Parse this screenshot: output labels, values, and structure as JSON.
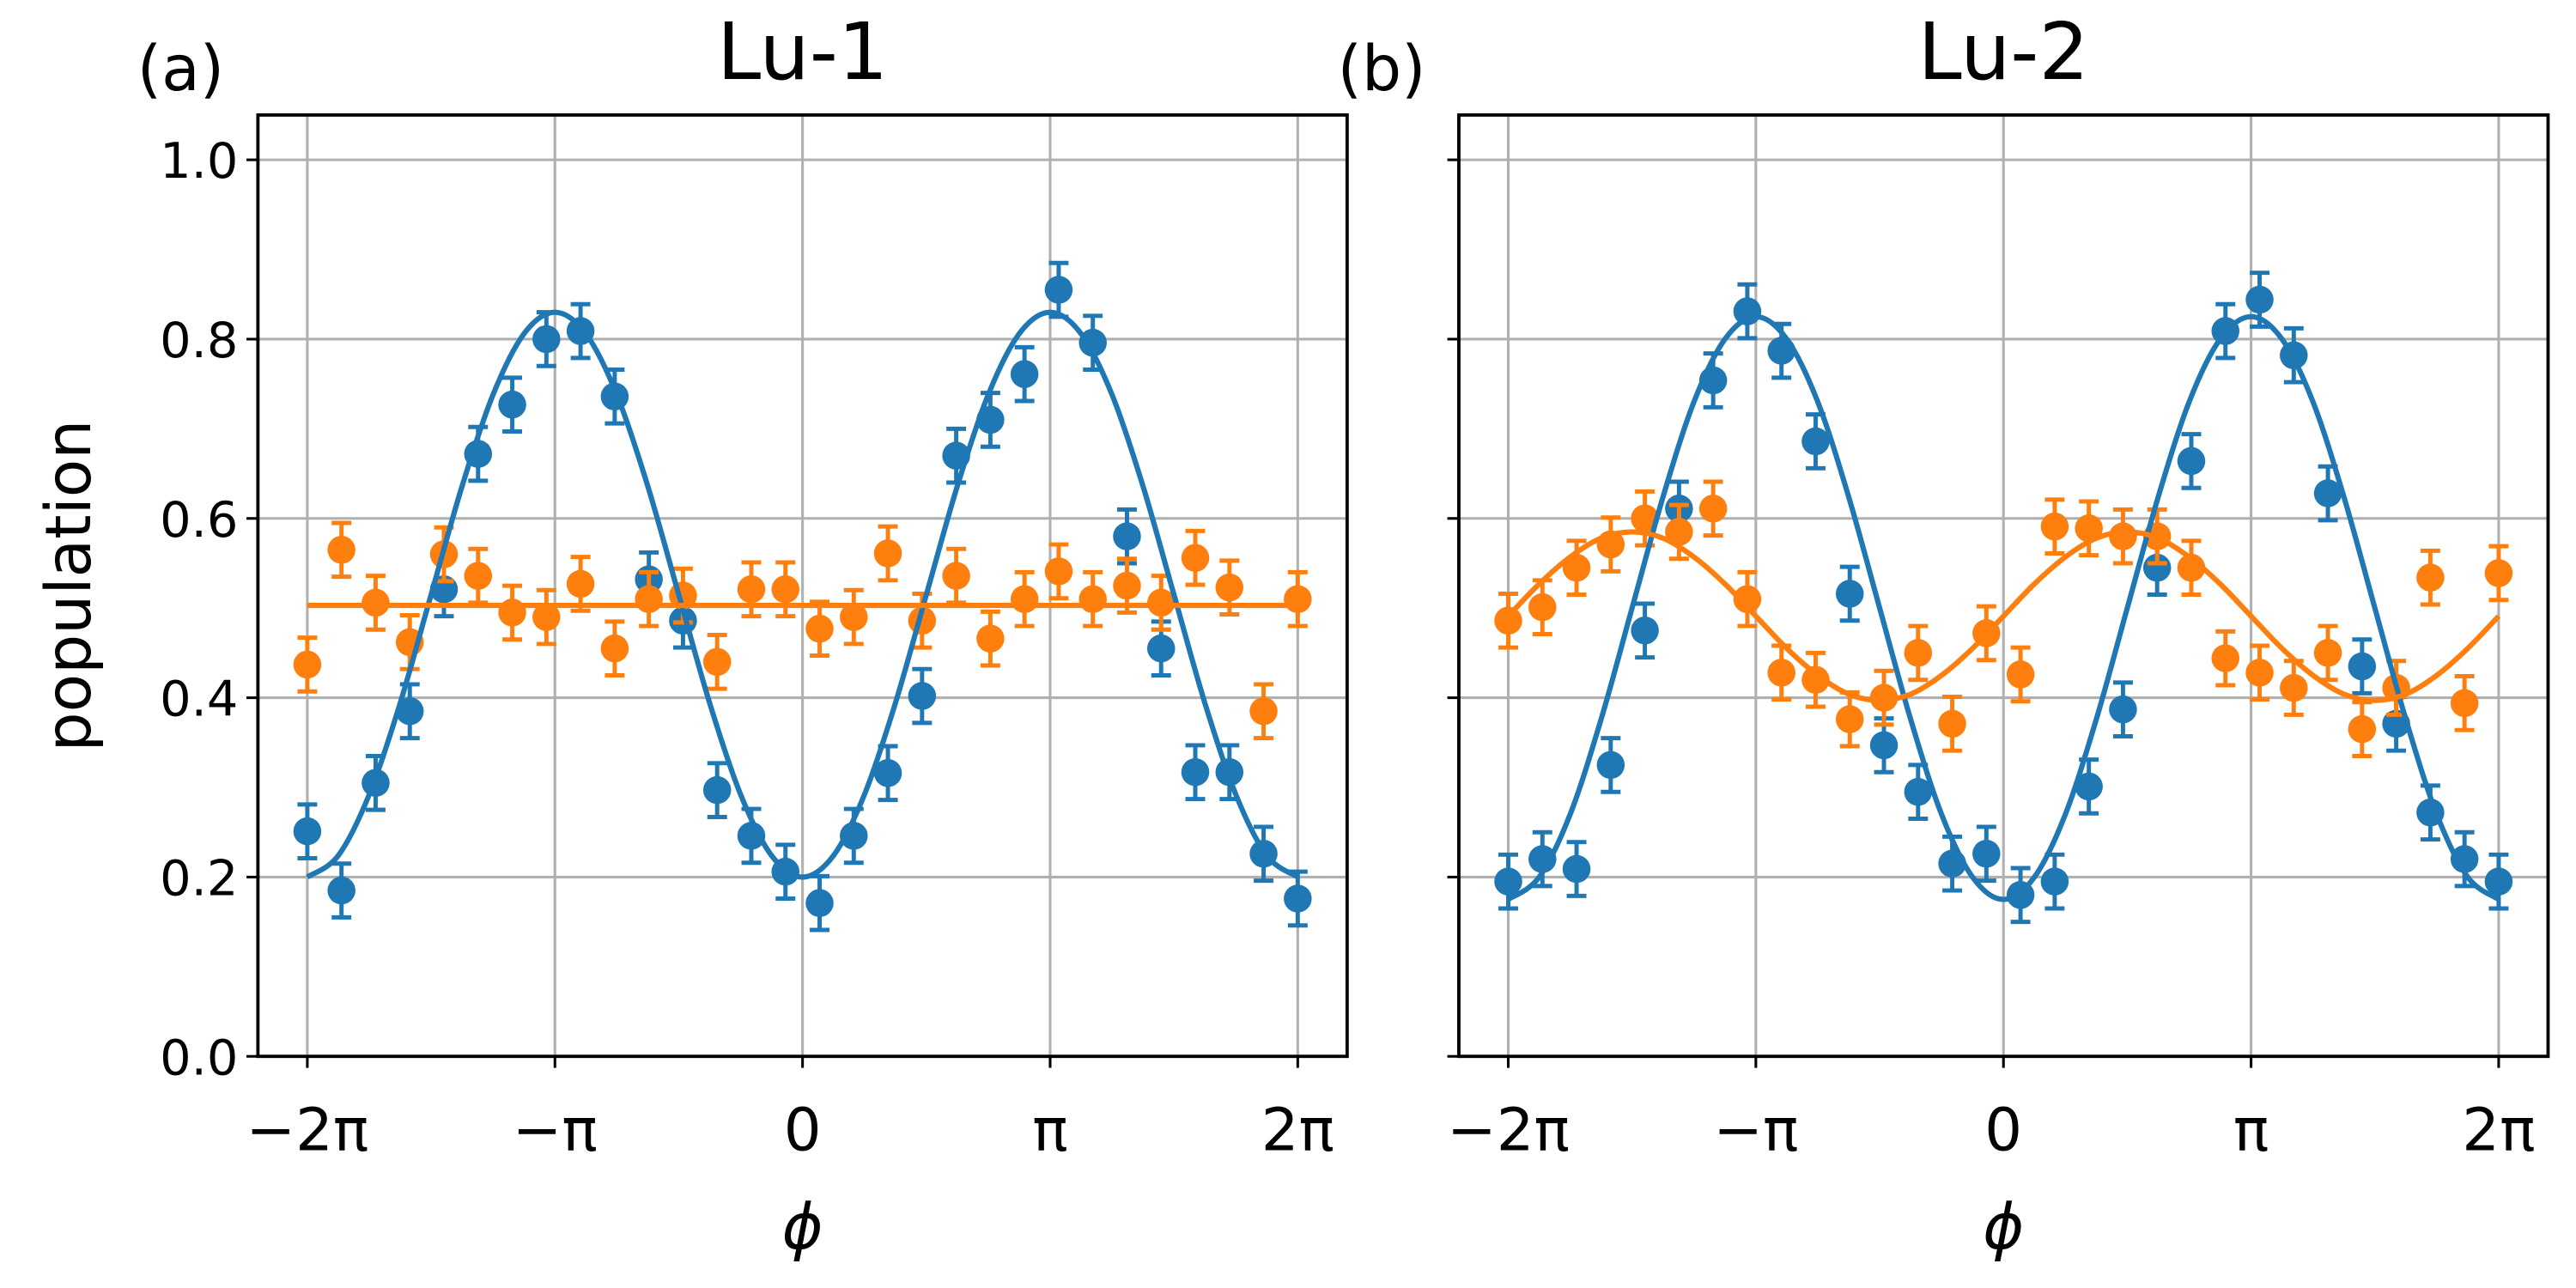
{
  "chart_data": [
    {
      "type": "scatter",
      "panel_label": "(a)",
      "title": "Lu-1",
      "xlabel": "ϕ",
      "ylabel": "population",
      "xlim": [
        -6.91,
        6.91
      ],
      "ylim": [
        0,
        1.05
      ],
      "xticks": [
        {
          "value": -6.2832,
          "label": "−2π"
        },
        {
          "value": -3.1416,
          "label": "−π"
        },
        0,
        {
          "value": 3.1416,
          "label": "π"
        },
        {
          "value": 6.2832,
          "label": "2π"
        }
      ],
      "yticks": [
        {
          "value": 0,
          "label": "0.0"
        },
        0.2,
        0.4,
        0.6,
        0.8,
        {
          "value": 1,
          "label": "1.0"
        }
      ],
      "grid": true,
      "x": [
        -6.2832,
        -5.8499,
        -5.4166,
        -4.9832,
        -4.5499,
        -4.1166,
        -3.6833,
        -3.2499,
        -2.8166,
        -2.3833,
        -1.95,
        -1.5166,
        -1.0833,
        -0.65,
        -0.2167,
        0.2167,
        0.65,
        1.0833,
        1.5166,
        1.95,
        2.3833,
        2.8166,
        3.2499,
        3.6833,
        4.1166,
        4.5499,
        4.9832,
        5.4166,
        5.8499,
        6.2832
      ],
      "series": [
        {
          "type": "errorbar",
          "color": "#1f77b4",
          "values": [
            0.251,
            0.185,
            0.305,
            0.385,
            0.521,
            0.672,
            0.727,
            0.8,
            0.809,
            0.736,
            0.532,
            0.486,
            0.297,
            0.246,
            0.206,
            0.171,
            0.246,
            0.316,
            0.402,
            0.67,
            0.71,
            0.761,
            0.855,
            0.796,
            0.58,
            0.455,
            0.317,
            0.317,
            0.226,
            0.176
          ],
          "errors": [
            0.03,
            0.03,
            0.03,
            0.03,
            0.03,
            0.03,
            0.03,
            0.03,
            0.03,
            0.03,
            0.03,
            0.03,
            0.03,
            0.03,
            0.03,
            0.03,
            0.03,
            0.03,
            0.03,
            0.03,
            0.03,
            0.03,
            0.03,
            0.03,
            0.03,
            0.03,
            0.03,
            0.03,
            0.03,
            0.03
          ]
        },
        {
          "type": "errorbar",
          "color": "#ff7f0e",
          "values": [
            0.437,
            0.565,
            0.506,
            0.462,
            0.56,
            0.536,
            0.495,
            0.49,
            0.527,
            0.455,
            0.51,
            0.514,
            0.44,
            0.521,
            0.521,
            0.477,
            0.49,
            0.561,
            0.486,
            0.536,
            0.466,
            0.51,
            0.541,
            0.51,
            0.525,
            0.506,
            0.556,
            0.523,
            0.385,
            0.51
          ],
          "errors": [
            0.03,
            0.03,
            0.03,
            0.03,
            0.03,
            0.03,
            0.03,
            0.03,
            0.03,
            0.03,
            0.03,
            0.03,
            0.03,
            0.03,
            0.03,
            0.03,
            0.03,
            0.03,
            0.03,
            0.03,
            0.03,
            0.03,
            0.03,
            0.03,
            0.03,
            0.03,
            0.03,
            0.03,
            0.03,
            0.03
          ]
        },
        {
          "type": "line",
          "color": "#1f77b4",
          "x": [
            -6.2832,
            -5.8905,
            -5.4978,
            -5.1051,
            -4.7124,
            -4.3197,
            -3.927,
            -3.5343,
            -3.1416,
            -2.7489,
            -2.3562,
            -1.9635,
            -1.5708,
            -1.1781,
            -0.7854,
            -0.3927,
            0,
            0.3927,
            0.7854,
            1.1781,
            1.5708,
            1.9635,
            2.3562,
            2.7489,
            3.1416,
            3.5343,
            3.927,
            4.3197,
            4.7124,
            5.1051,
            5.4978,
            5.8905,
            6.2832
          ],
          "values": [
            0.2,
            0.224,
            0.292,
            0.394,
            0.515,
            0.636,
            0.738,
            0.806,
            0.83,
            0.806,
            0.738,
            0.636,
            0.515,
            0.394,
            0.292,
            0.224,
            0.2,
            0.224,
            0.292,
            0.394,
            0.515,
            0.636,
            0.738,
            0.806,
            0.83,
            0.806,
            0.738,
            0.636,
            0.515,
            0.394,
            0.292,
            0.224,
            0.2
          ]
        },
        {
          "type": "line",
          "color": "#ff7f0e",
          "x": [
            -6.2832,
            6.2832
          ],
          "values": [
            0.503,
            0.503
          ]
        }
      ]
    },
    {
      "type": "scatter",
      "panel_label": "(b)",
      "title": "Lu-2",
      "xlabel": "ϕ",
      "sharey": true,
      "xlim": [
        -6.91,
        6.91
      ],
      "ylim": [
        0,
        1.05
      ],
      "xticks": [
        {
          "value": -6.2832,
          "label": "−2π"
        },
        {
          "value": -3.1416,
          "label": "−π"
        },
        0,
        {
          "value": 3.1416,
          "label": "π"
        },
        {
          "value": 6.2832,
          "label": "2π"
        }
      ],
      "yticks": [
        0,
        0.2,
        0.4,
        0.6,
        0.8,
        1
      ],
      "grid": true,
      "x": [
        -6.2832,
        -5.8499,
        -5.4166,
        -4.9832,
        -4.5499,
        -4.1166,
        -3.6833,
        -3.2499,
        -2.8166,
        -2.3833,
        -1.95,
        -1.5166,
        -1.0833,
        -0.65,
        -0.2167,
        0.2167,
        0.65,
        1.0833,
        1.5166,
        1.95,
        2.3833,
        2.8166,
        3.2499,
        3.6833,
        4.1166,
        4.5499,
        4.9832,
        5.4166,
        5.8499,
        6.2832
      ],
      "series": [
        {
          "type": "errorbar",
          "color": "#1f77b4",
          "values": [
            0.195,
            0.22,
            0.209,
            0.325,
            0.475,
            0.611,
            0.754,
            0.831,
            0.787,
            0.686,
            0.516,
            0.347,
            0.295,
            0.215,
            0.226,
            0.18,
            0.195,
            0.301,
            0.387,
            0.545,
            0.664,
            0.809,
            0.844,
            0.782,
            0.628,
            0.435,
            0.371,
            0.272,
            0.22,
            0.195
          ],
          "errors": [
            0.03,
            0.03,
            0.03,
            0.03,
            0.03,
            0.03,
            0.03,
            0.03,
            0.03,
            0.03,
            0.03,
            0.03,
            0.03,
            0.03,
            0.03,
            0.03,
            0.03,
            0.03,
            0.03,
            0.03,
            0.03,
            0.03,
            0.03,
            0.03,
            0.03,
            0.03,
            0.03,
            0.03,
            0.03,
            0.03
          ]
        },
        {
          "type": "errorbar",
          "color": "#ff7f0e",
          "values": [
            0.486,
            0.501,
            0.545,
            0.571,
            0.6,
            0.585,
            0.611,
            0.51,
            0.428,
            0.42,
            0.376,
            0.4,
            0.45,
            0.371,
            0.472,
            0.426,
            0.591,
            0.589,
            0.58,
            0.58,
            0.545,
            0.444,
            0.428,
            0.411,
            0.45,
            0.365,
            0.411,
            0.534,
            0.394,
            0.539
          ],
          "errors": [
            0.03,
            0.03,
            0.03,
            0.03,
            0.03,
            0.03,
            0.03,
            0.03,
            0.03,
            0.03,
            0.03,
            0.03,
            0.03,
            0.03,
            0.03,
            0.03,
            0.03,
            0.03,
            0.03,
            0.03,
            0.03,
            0.03,
            0.03,
            0.03,
            0.03,
            0.03,
            0.03,
            0.03,
            0.03,
            0.03
          ]
        },
        {
          "type": "line",
          "color": "#1f77b4",
          "x": [
            -6.2832,
            -5.8905,
            -5.4978,
            -5.1051,
            -4.7124,
            -4.3197,
            -3.927,
            -3.5343,
            -3.1416,
            -2.7489,
            -2.3562,
            -1.9635,
            -1.5708,
            -1.1781,
            -0.7854,
            -0.3927,
            0,
            0.3927,
            0.7854,
            1.1781,
            1.5708,
            1.9635,
            2.3562,
            2.7489,
            3.1416,
            3.5343,
            3.927,
            4.3197,
            4.7124,
            5.1051,
            5.4978,
            5.8905,
            6.2832
          ],
          "values": [
            0.175,
            0.2,
            0.27,
            0.376,
            0.5,
            0.624,
            0.73,
            0.8,
            0.825,
            0.8,
            0.73,
            0.624,
            0.5,
            0.376,
            0.27,
            0.2,
            0.175,
            0.2,
            0.27,
            0.376,
            0.5,
            0.624,
            0.73,
            0.8,
            0.825,
            0.8,
            0.73,
            0.624,
            0.5,
            0.376,
            0.27,
            0.2,
            0.175
          ]
        },
        {
          "type": "line",
          "color": "#ff7f0e",
          "x": [
            -6.2832,
            -5.8905,
            -5.4978,
            -5.1051,
            -4.7124,
            -4.3197,
            -3.927,
            -3.5343,
            -3.1416,
            -2.7489,
            -2.3562,
            -1.9635,
            -1.5708,
            -1.1781,
            -0.7854,
            -0.3927,
            0,
            0.3927,
            0.7854,
            1.1781,
            1.5708,
            1.9635,
            2.3562,
            2.7489,
            3.1416,
            3.5343,
            3.927,
            4.3197,
            4.7124,
            5.1051,
            5.4978,
            5.8905,
            6.2832
          ],
          "values": [
            0.491,
            0.527,
            0.557,
            0.578,
            0.585,
            0.578,
            0.557,
            0.527,
            0.491,
            0.455,
            0.425,
            0.404,
            0.397,
            0.404,
            0.425,
            0.455,
            0.491,
            0.527,
            0.557,
            0.578,
            0.585,
            0.578,
            0.557,
            0.527,
            0.491,
            0.455,
            0.425,
            0.404,
            0.397,
            0.404,
            0.425,
            0.455,
            0.491
          ]
        }
      ]
    }
  ]
}
